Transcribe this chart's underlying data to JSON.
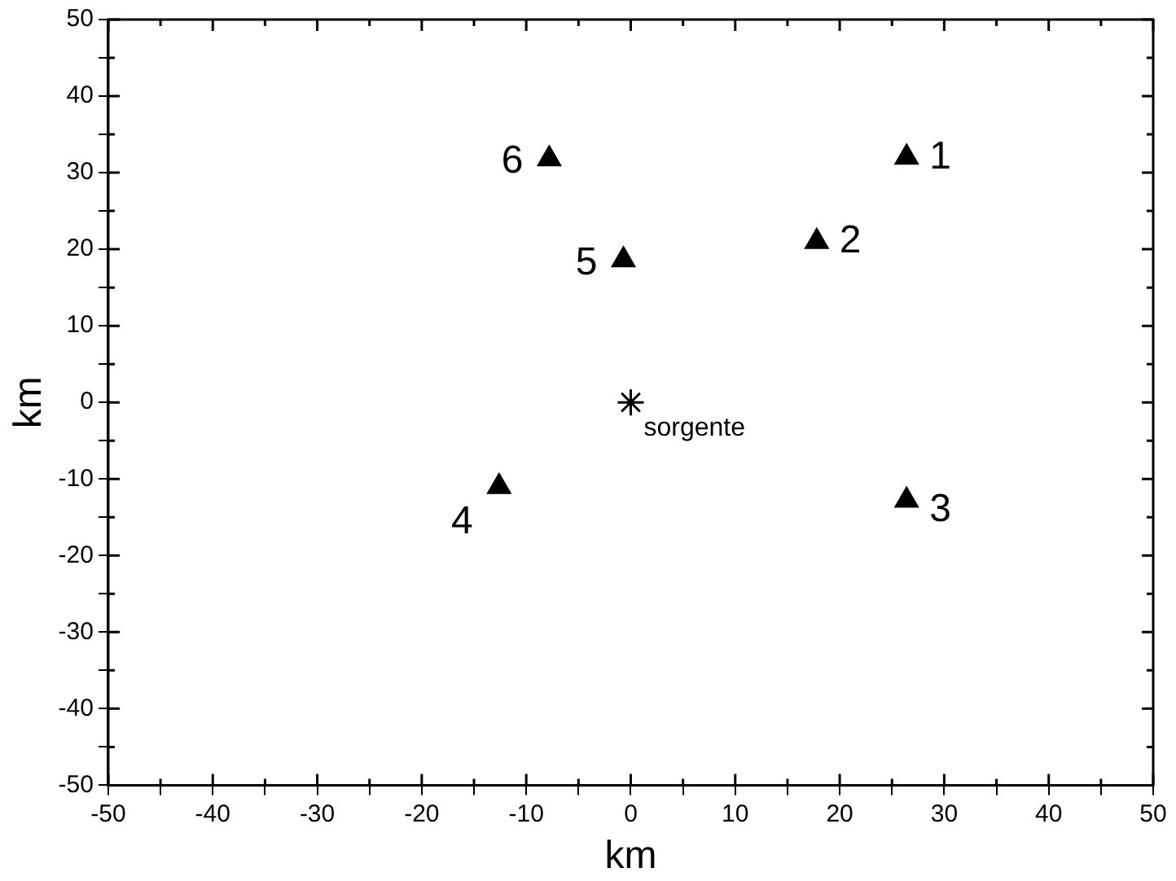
{
  "chart_data": {
    "type": "scatter",
    "xlabel": "km",
    "ylabel": "km",
    "xlim": [
      -50,
      50
    ],
    "ylim": [
      -50,
      50
    ],
    "xticks": [
      -50,
      {
        "value": -45,
        "label": null
      },
      -40,
      {
        "value": -35,
        "label": null
      },
      -30,
      {
        "value": -25,
        "label": null
      },
      -20,
      {
        "value": -15,
        "label": null
      },
      -10,
      {
        "value": -5,
        "label": null
      },
      0,
      {
        "value": 5,
        "label": null
      },
      10,
      {
        "value": 15,
        "label": null
      },
      20,
      {
        "value": 25,
        "label": null
      },
      30,
      {
        "value": 35,
        "label": null
      },
      40,
      {
        "value": 45,
        "label": null
      },
      50
    ],
    "yticks": [
      -50,
      {
        "value": -45,
        "label": null
      },
      -40,
      {
        "value": -35,
        "label": null
      },
      -30,
      {
        "value": -25,
        "label": null
      },
      -20,
      {
        "value": -15,
        "label": null
      },
      -10,
      {
        "value": -5,
        "label": null
      },
      0,
      {
        "value": 5,
        "label": null
      },
      10,
      {
        "value": 15,
        "label": null
      },
      20,
      {
        "value": 25,
        "label": null
      },
      30,
      {
        "value": 35,
        "label": null
      },
      40,
      {
        "value": 45,
        "label": null
      },
      50
    ],
    "grid": false,
    "legend": false,
    "series": [
      {
        "color": "#000000",
        "marker": "triangle",
        "x": [
          26.4,
          17.8,
          26.4,
          -12.6,
          -0.7,
          -7.8
        ],
        "values": [
          32,
          21,
          -12.8,
          -11,
          18.6,
          31.8
        ]
      },
      {
        "color": "#000000",
        "marker": "cross",
        "x": [
          0
        ],
        "values": [
          0
        ]
      }
    ],
    "annotations": [
      {
        "text": "1",
        "x": 26.4,
        "y": 32
      },
      {
        "text": "2",
        "x": 17.8,
        "y": 21
      },
      {
        "text": "3",
        "x": 26.4,
        "y": -12.8
      },
      {
        "text": "4",
        "x": -12.6,
        "y": -11
      },
      {
        "text": "5",
        "x": -0.7,
        "y": 18.6
      },
      {
        "text": "6",
        "x": -7.8,
        "y": 31.8
      },
      {
        "text": "sorgente",
        "x": 0,
        "y": 0
      }
    ]
  }
}
